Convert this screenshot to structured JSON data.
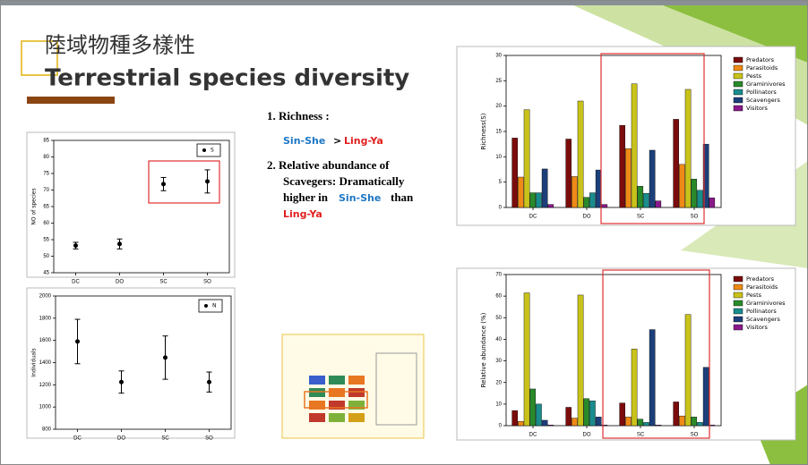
{
  "slide": {
    "title_zh": "陸域物種多樣性",
    "title_en": "Terrestrial species diversity",
    "point1": "1. Richness :",
    "site_a": "Sin-She",
    "op": ">",
    "site_b": "Ling-Ya",
    "point2_line1": "2. Relative abundance of",
    "point2_line2": "Scavegers:  Dramatically",
    "point2_line3a": "higher in",
    "point2_line3b": "Sin-She",
    "point2_line3c": "than",
    "point2_line4": "Ling-Ya"
  },
  "chart_data": [
    {
      "type": "scatter",
      "ylabel": "NO of species",
      "categories": [
        "DC",
        "DO",
        "SC",
        "SO"
      ],
      "ylim": [
        45,
        85
      ],
      "yticks": [
        45,
        50,
        55,
        60,
        65,
        70,
        75,
        80,
        85
      ],
      "legend": "upper right",
      "series": [
        {
          "name": "S",
          "color": "#000000",
          "values": [
            53.2,
            53.7,
            71.8,
            72.6
          ],
          "errors": [
            1,
            1.5,
            2,
            3.5
          ]
        }
      ]
    },
    {
      "type": "scatter",
      "ylabel": "Individuals",
      "categories": [
        "DC",
        "DO",
        "SC",
        "SO"
      ],
      "ylim": [
        800,
        2000
      ],
      "yticks": [
        800,
        1000,
        1200,
        1400,
        1600,
        1800,
        2000
      ],
      "legend": "upper right",
      "series": [
        {
          "name": "N",
          "color": "#000000",
          "values": [
            1590,
            1225,
            1445,
            1225
          ],
          "errors": [
            200,
            100,
            195,
            90
          ]
        }
      ]
    },
    {
      "type": "bar",
      "ylabel": "Richness(S)",
      "categories": [
        "DC",
        "DO",
        "SC",
        "SO"
      ],
      "ylim": [
        0,
        30
      ],
      "yticks": [
        0,
        5,
        10,
        15,
        20,
        25,
        30
      ],
      "legend": "right",
      "series": [
        {
          "name": "Predators",
          "color": "#7b0c0c",
          "values": [
            13.7,
            13.5,
            16.2,
            17.4
          ]
        },
        {
          "name": "Parasitoids",
          "color": "#ef8a17",
          "values": [
            6,
            6.1,
            11.6,
            8.5
          ]
        },
        {
          "name": "Pests",
          "color": "#c9c21a",
          "values": [
            19.3,
            21,
            24.4,
            23.3
          ]
        },
        {
          "name": "Graminivores",
          "color": "#2a8a2a",
          "values": [
            2.9,
            2,
            4.2,
            5.6
          ]
        },
        {
          "name": "Pollinators",
          "color": "#1a8c8c",
          "values": [
            2.9,
            2.9,
            2.8,
            3.4
          ]
        },
        {
          "name": "Scavengers",
          "color": "#1c3f7a",
          "values": [
            7.6,
            7.4,
            11.3,
            12.5
          ]
        },
        {
          "name": "Visitors",
          "color": "#8a1a8a",
          "values": [
            0.6,
            0.6,
            1.3,
            1.9
          ]
        }
      ]
    },
    {
      "type": "bar",
      "ylabel": "Relative abundance (%)",
      "categories": [
        "DC",
        "DO",
        "SC",
        "SO"
      ],
      "ylim": [
        0,
        70
      ],
      "yticks": [
        0,
        10,
        20,
        30,
        40,
        50,
        60,
        70
      ],
      "legend": "right",
      "series": [
        {
          "name": "Predators",
          "color": "#7b0c0c",
          "values": [
            7,
            8.5,
            10.5,
            11
          ]
        },
        {
          "name": "Parasitoids",
          "color": "#ef8a17",
          "values": [
            2,
            3.5,
            4,
            4.5
          ]
        },
        {
          "name": "Pests",
          "color": "#c9c21a",
          "values": [
            61.5,
            60.5,
            35.5,
            51.5
          ]
        },
        {
          "name": "Graminivores",
          "color": "#2a8a2a",
          "values": [
            17,
            12.5,
            3,
            4
          ]
        },
        {
          "name": "Pollinators",
          "color": "#1a8c8c",
          "values": [
            10,
            11.5,
            1.5,
            1.5
          ]
        },
        {
          "name": "Scavengers",
          "color": "#1c3f7a",
          "values": [
            2.5,
            4,
            44.5,
            27
          ]
        },
        {
          "name": "Visitors",
          "color": "#8a1a8a",
          "values": [
            0.3,
            0.3,
            0.3,
            0.3
          ]
        }
      ]
    }
  ]
}
